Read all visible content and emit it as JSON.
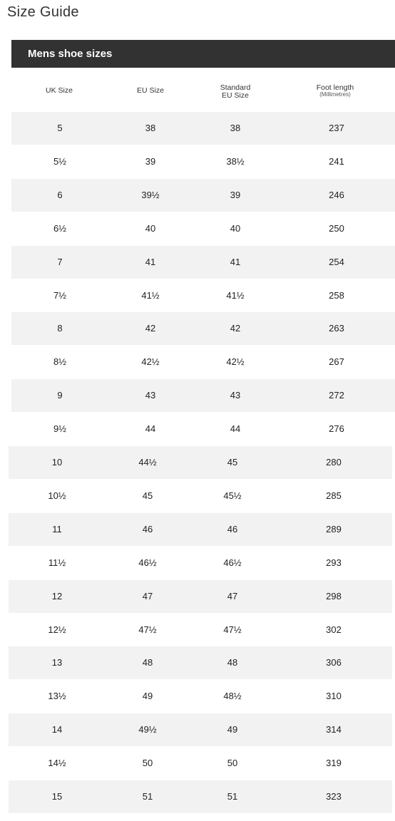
{
  "page": {
    "title": "Size Guide"
  },
  "table": {
    "title": "Mens shoe sizes",
    "headers": {
      "uk": "UK Size",
      "eu": "EU Size",
      "standard_line1": "Standard",
      "standard_line2": "EU Size",
      "foot_line1": "Foot length",
      "foot_line2": "(Millimetres)"
    },
    "rows": [
      {
        "uk": "5",
        "eu": "38",
        "std": "38",
        "foot": "237"
      },
      {
        "uk": "5½",
        "eu": "39",
        "std": "38½",
        "foot": "241"
      },
      {
        "uk": "6",
        "eu": "39½",
        "std": "39",
        "foot": "246"
      },
      {
        "uk": "6½",
        "eu": "40",
        "std": "40",
        "foot": "250"
      },
      {
        "uk": "7",
        "eu": "41",
        "std": "41",
        "foot": "254"
      },
      {
        "uk": "7½",
        "eu": "41½",
        "std": "41½",
        "foot": "258"
      },
      {
        "uk": "8",
        "eu": "42",
        "std": "42",
        "foot": "263"
      },
      {
        "uk": "8½",
        "eu": "42½",
        "std": "42½",
        "foot": "267"
      },
      {
        "uk": "9",
        "eu": "43",
        "std": "43",
        "foot": "272"
      },
      {
        "uk": "9½",
        "eu": "44",
        "std": "44",
        "foot": "276"
      },
      {
        "uk": "10",
        "eu": "44½",
        "std": "45",
        "foot": "280"
      },
      {
        "uk": "10½",
        "eu": "45",
        "std": "45½",
        "foot": "285"
      },
      {
        "uk": "11",
        "eu": "46",
        "std": "46",
        "foot": "289"
      },
      {
        "uk": "11½",
        "eu": "46½",
        "std": "46½",
        "foot": "293"
      },
      {
        "uk": "12",
        "eu": "47",
        "std": "47",
        "foot": "298"
      },
      {
        "uk": "12½",
        "eu": "47½",
        "std": "47½",
        "foot": "302"
      },
      {
        "uk": "13",
        "eu": "48",
        "std": "48",
        "foot": "306"
      },
      {
        "uk": "13½",
        "eu": "49",
        "std": "48½",
        "foot": "310"
      },
      {
        "uk": "14",
        "eu": "49½",
        "std": "49",
        "foot": "314"
      },
      {
        "uk": "14½",
        "eu": "50",
        "std": "50",
        "foot": "319"
      },
      {
        "uk": "15",
        "eu": "51",
        "std": "51",
        "foot": "323"
      }
    ]
  }
}
